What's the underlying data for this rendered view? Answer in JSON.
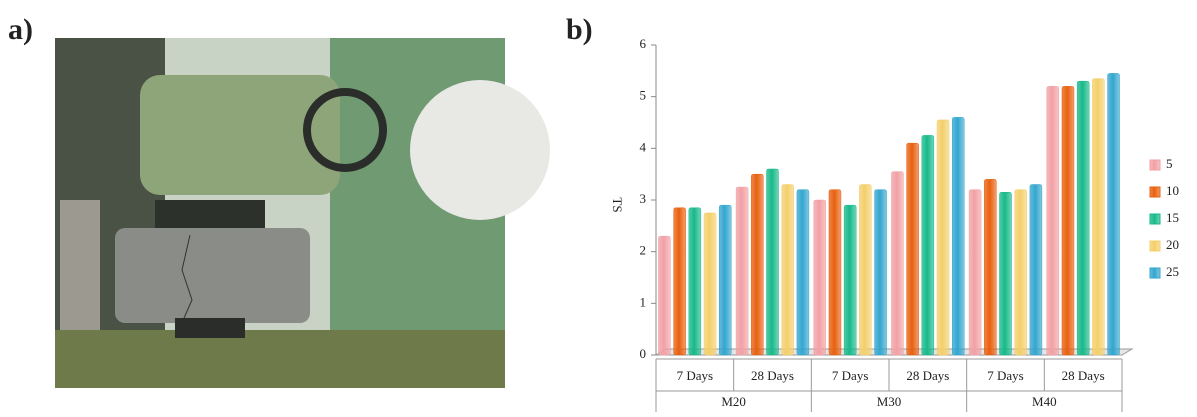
{
  "panel_labels": [
    "a)",
    "b)"
  ],
  "chart_data": {
    "type": "bar",
    "y_label": "TS",
    "categories": [
      "7 Days",
      "28 Days",
      "7 Days",
      "28 Days",
      "7 Days",
      "28 Days"
    ],
    "groups": [
      "M20",
      "M30",
      "M40"
    ],
    "series": [
      {
        "name": "5",
        "color": "#f2a0a4",
        "values": [
          2.3,
          3.25,
          3.0,
          3.55,
          3.2,
          5.2
        ]
      },
      {
        "name": "10",
        "color": "#e8600e",
        "values": [
          2.85,
          3.5,
          3.2,
          4.1,
          3.4,
          5.2
        ]
      },
      {
        "name": "15",
        "color": "#17b98a",
        "values": [
          2.85,
          3.6,
          2.9,
          4.25,
          3.15,
          5.3
        ]
      },
      {
        "name": "20",
        "color": "#f4cf6a",
        "values": [
          2.75,
          3.3,
          3.3,
          4.55,
          3.2,
          5.35
        ]
      },
      {
        "name": "25",
        "color": "#33a6cf",
        "values": [
          2.9,
          3.2,
          3.2,
          4.6,
          3.3,
          5.45
        ]
      }
    ],
    "ylim": [
      0,
      6
    ],
    "yticks": [
      0,
      1,
      2,
      3,
      4,
      5,
      6
    ],
    "legend": "right"
  }
}
